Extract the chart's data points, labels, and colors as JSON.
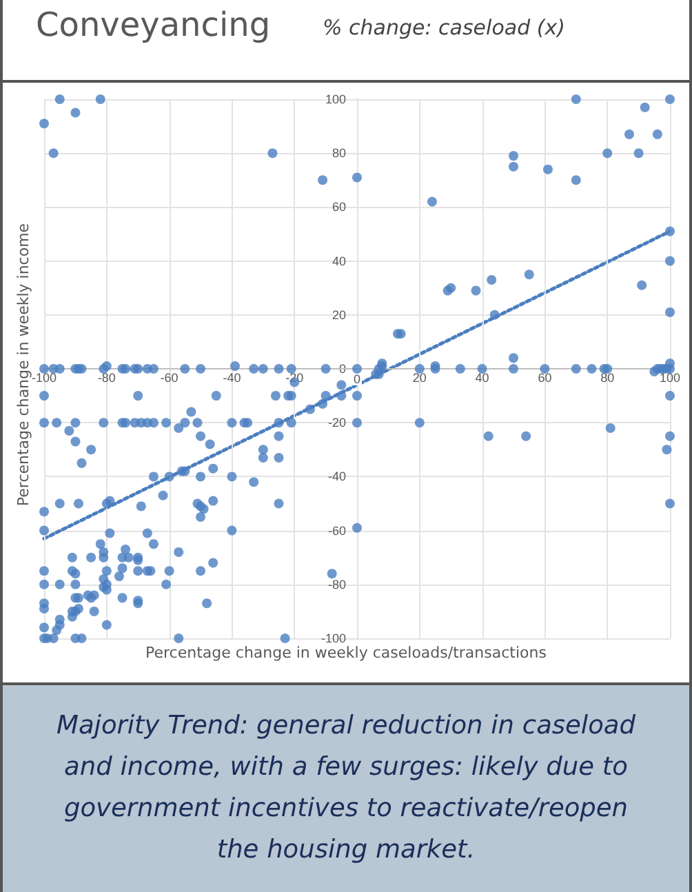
{
  "chart_data": {
    "type": "scatter",
    "title": "Conveyancing",
    "subtitle": "% change: caseload (x)",
    "xlabel": "Percentage change in weekly caseloads/transactions",
    "ylabel": "Percentage change in weekly income",
    "annotations": [
      "Majority Trend: general reduction in caseload and income, with a few surges: likely due to government incentives to reactivate/reopen the housing market."
    ],
    "xlim": [
      -100,
      100
    ],
    "xticks": [
      -100,
      -80,
      -60,
      -40,
      -20,
      0,
      20,
      40,
      60,
      80,
      100
    ],
    "ylim": [
      -100,
      100
    ],
    "yticks": [
      -100,
      -80,
      -60,
      -40,
      -20,
      0,
      20,
      40,
      60,
      80,
      100
    ],
    "grid": true,
    "marker": "circle",
    "series": [
      {
        "type": "scatter",
        "color": "#4a7ec0",
        "x": [
          -100,
          -97,
          -95,
          -90,
          -82,
          -27,
          -11,
          0,
          -100,
          -97,
          -95,
          -90,
          -89,
          -88,
          -81,
          -80,
          -75,
          -74,
          -71,
          -70,
          -67,
          -65,
          -55,
          -50,
          -39,
          -33,
          -30,
          -25,
          -21,
          -10,
          0,
          24,
          13,
          14,
          29,
          30,
          38,
          43,
          44,
          55,
          50,
          50,
          61,
          70,
          70,
          80,
          87,
          90,
          92,
          96,
          100,
          100,
          100,
          91,
          100,
          50,
          7,
          8,
          8,
          20,
          25,
          25,
          33,
          40,
          50,
          60,
          70,
          75,
          79,
          80,
          95,
          96,
          97,
          98,
          99,
          100,
          100,
          0,
          0,
          20,
          42,
          54,
          81,
          100,
          100,
          99,
          100,
          0,
          6,
          7,
          -100,
          -70,
          -45,
          -26,
          -22,
          -21,
          -10,
          -5,
          -20,
          -5,
          -100,
          -96,
          -90,
          -81,
          -75,
          -74,
          -71,
          -69,
          -67,
          -65,
          -61,
          -55,
          -51,
          -40,
          -36,
          -35,
          -25,
          -21,
          -15,
          -11,
          -53,
          -57,
          -50,
          -47,
          -30,
          -30,
          -25,
          -25,
          -92,
          -90,
          -85,
          -88,
          -65,
          -60,
          -56,
          -55,
          -50,
          -46,
          -40,
          -33,
          -62,
          -95,
          -89,
          -80,
          -79,
          -69,
          -51,
          -50,
          -49,
          -50,
          -46,
          -25,
          -100,
          -100,
          -79,
          -67,
          -40,
          -65,
          -82,
          -81,
          -81,
          -91,
          -85,
          -74,
          -75,
          -73,
          -70,
          -70,
          -57,
          -46,
          -8,
          -100,
          -91,
          -90,
          -80,
          -75,
          -76,
          -70,
          -67,
          -66,
          -60,
          -50,
          -100,
          -95,
          -90,
          -81,
          -80,
          -81,
          -80,
          -61,
          -90,
          -89,
          -86,
          -84,
          -85,
          -75,
          -70,
          -70,
          -48,
          -100,
          -100,
          -91,
          -90,
          -91,
          -89,
          -84,
          -95,
          -95,
          -96,
          -100,
          -80,
          -100,
          -99,
          -97,
          -90,
          -88,
          -57,
          -23
        ],
        "values": [
          91,
          80,
          100,
          95,
          100,
          80,
          70,
          71,
          0,
          0,
          0,
          0,
          0,
          0,
          0,
          1,
          0,
          0,
          0,
          0,
          0,
          0,
          0,
          0,
          1,
          0,
          0,
          0,
          0,
          0,
          0,
          62,
          13,
          13,
          29,
          30,
          29,
          33,
          20,
          35,
          79,
          75,
          74,
          100,
          70,
          80,
          87,
          80,
          97,
          87,
          100,
          51,
          40,
          31,
          21,
          4,
          0,
          1,
          2,
          0,
          1,
          0,
          0,
          0,
          0,
          0,
          0,
          0,
          0,
          0,
          -1,
          0,
          0,
          0,
          0,
          0,
          2,
          -10,
          -20,
          -20,
          -25,
          -25,
          -22,
          -10,
          -25,
          -30,
          -50,
          -59,
          -2,
          -2,
          -10,
          -10,
          -10,
          -10,
          -10,
          -10,
          -10,
          -10,
          -5,
          -6,
          -20,
          -20,
          -20,
          -20,
          -20,
          -20,
          -20,
          -20,
          -20,
          -20,
          -20,
          -20,
          -20,
          -20,
          -20,
          -20,
          -20,
          -20,
          -15,
          -13,
          -16,
          -22,
          -25,
          -28,
          -30,
          -33,
          -25,
          -33,
          -23,
          -27,
          -30,
          -35,
          -40,
          -40,
          -38,
          -38,
          -40,
          -37,
          -40,
          -42,
          -47,
          -50,
          -50,
          -50,
          -49,
          -51,
          -50,
          -51,
          -52,
          -55,
          -49,
          -50,
          -53,
          -60,
          -61,
          -61,
          -60,
          -65,
          -65,
          -68,
          -70,
          -70,
          -70,
          -67,
          -70,
          -70,
          -70,
          -71,
          -68,
          -72,
          -76,
          -75,
          -75,
          -76,
          -75,
          -74,
          -77,
          -75,
          -75,
          -75,
          -75,
          -75,
          -80,
          -80,
          -80,
          -78,
          -80,
          -81,
          -82,
          -80,
          -85,
          -85,
          -84,
          -84,
          -85,
          -85,
          -86,
          -87,
          -87,
          -87,
          -89,
          -90,
          -90,
          -92,
          -89,
          -90,
          -93,
          -95,
          -97,
          -96,
          -95,
          -100,
          -100,
          -100,
          -100,
          -100,
          -100,
          -100
        ]
      },
      {
        "type": "line",
        "color": "#4a7ec0",
        "marker": "none",
        "line_style": "dotted",
        "x": [
          -100,
          100
        ],
        "values": [
          -63,
          51
        ]
      }
    ]
  }
}
